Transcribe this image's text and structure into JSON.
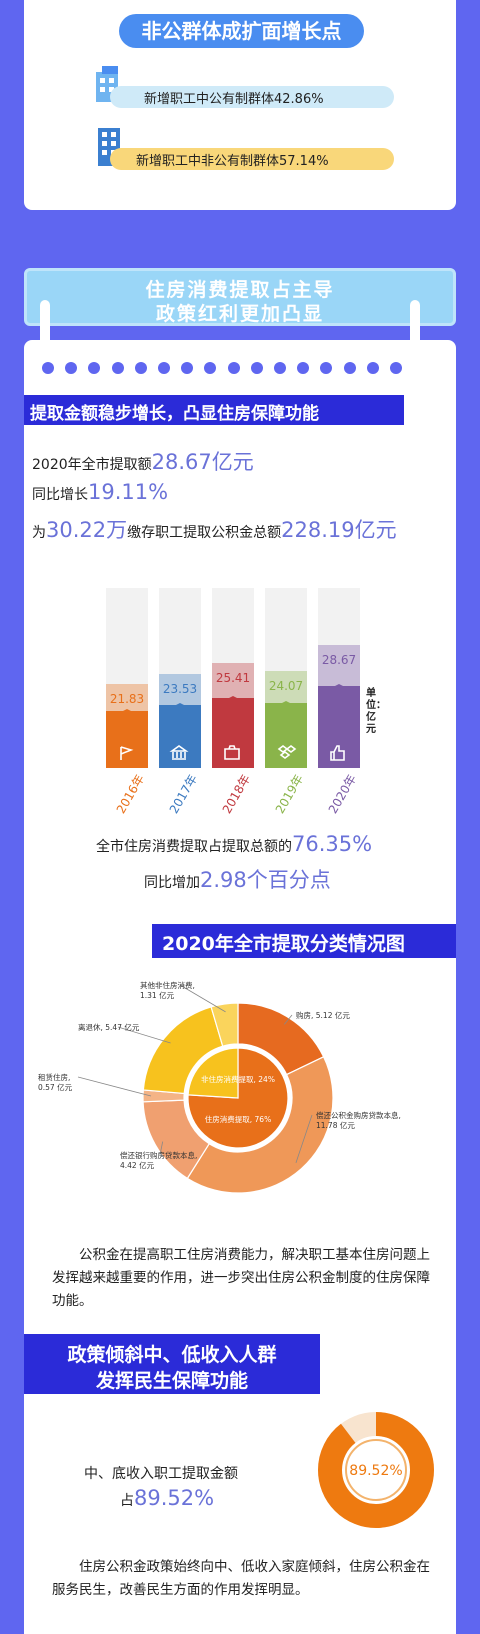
{
  "section1": {
    "title": "非公群体成扩面增长点",
    "item1": "新增职工中公有制群体42.86%",
    "item2": "新增职工中非公有制群体57.14%"
  },
  "section2": {
    "banner_line1": "住房消费提取占主导",
    "banner_line2": "政策红利更加凸显",
    "subtitle": "提取金额稳步增长，凸显住房保障功能",
    "stat1_prefix": "2020年全市提取额",
    "stat1_value": "28.67亿元",
    "stat2_prefix": "同比增长",
    "stat2_value": "19.11%",
    "stat3_prefix": "为",
    "stat3_value1": "30.22万",
    "stat3_mid": "缴存职工提取公积金总额",
    "stat3_value2": "228.19亿元",
    "unit_label": "单位：亿元",
    "ratio_prefix": "全市住房消费提取占提取总额的",
    "ratio_value": "76.35%",
    "ratio2_prefix": "同比增加",
    "ratio2_value": "2.98个百分点"
  },
  "section3": {
    "title": "2020年全市提取分类情况图",
    "paragraph": "公积金在提高职工住房消费能力，解决职工基本住房问题上发挥越来越重要的作用，进一步突出住房公积金制度的住房保障功能。"
  },
  "section4": {
    "banner_line1": "政策倾斜中、低收入人群",
    "banner_line2": "发挥民生保障功能",
    "stat_line1": "中、底收入职工提取金额",
    "stat_prefix": "占",
    "stat_value": "89.52%",
    "donut_label": "89.52%",
    "paragraph": "住房公积金政策始终向中、低收入家庭倾斜，住房公积金在服务民生，改善民生方面的作用发挥明显。"
  },
  "colors": {
    "background": "#5f66f0",
    "accent_text": "#6a72d8",
    "banner": "#2b2bd8",
    "orange": "#e8701a",
    "yellow": "#f7c21e"
  },
  "chart_data": [
    {
      "type": "bar",
      "title": "",
      "categories": [
        "2016年",
        "2017年",
        "2018年",
        "2019年",
        "2020年"
      ],
      "values": [
        21.83,
        23.53,
        25.41,
        24.07,
        28.67
      ],
      "value_labels": [
        "21.83",
        "23.53",
        "25.41",
        "24.07",
        "28.67"
      ],
      "icons": [
        "flag-icon",
        "bank-icon",
        "camera-icon",
        "dropbox-icon",
        "thumbs-up-icon"
      ],
      "colors": [
        "#e8701a",
        "#3c7ac0",
        "#c0393f",
        "#8ab44a",
        "#7a5aa5"
      ],
      "ylim": [
        0,
        30
      ],
      "ylabel": "单位：亿元"
    },
    {
      "type": "pie",
      "title": "2020年全市提取分类情况图",
      "inner": [
        {
          "label": "住房消费提取, 76%",
          "value": 76,
          "color": "#e8701a"
        },
        {
          "label": "非住房消费提取, 24%",
          "value": 24,
          "color": "#f7c21e"
        }
      ],
      "outer": [
        {
          "label": "购房, 5.12 亿元",
          "value": 5.12,
          "color": "#e66a20"
        },
        {
          "label": "偿还公积金购房贷款本息, 11.78 亿元",
          "value": 11.78,
          "color": "#ef9858"
        },
        {
          "label": "偿还银行购房贷款本息, 4.42 亿元",
          "value": 4.42,
          "color": "#f0a070"
        },
        {
          "label": "租赁住房, 0.57 亿元",
          "value": 0.57,
          "color": "#f4b486"
        },
        {
          "label": "离退休, 5.47 亿元",
          "value": 5.47,
          "color": "#f7c21e"
        },
        {
          "label": "其他非住房消费, 1.31 亿元",
          "value": 1.31,
          "color": "#fad45c"
        }
      ]
    },
    {
      "type": "pie",
      "title": "",
      "values": [
        89.52,
        10.48
      ],
      "labels": [
        "89.52%",
        ""
      ],
      "colors": [
        "#ee7a10",
        "#ffffff"
      ]
    }
  ]
}
